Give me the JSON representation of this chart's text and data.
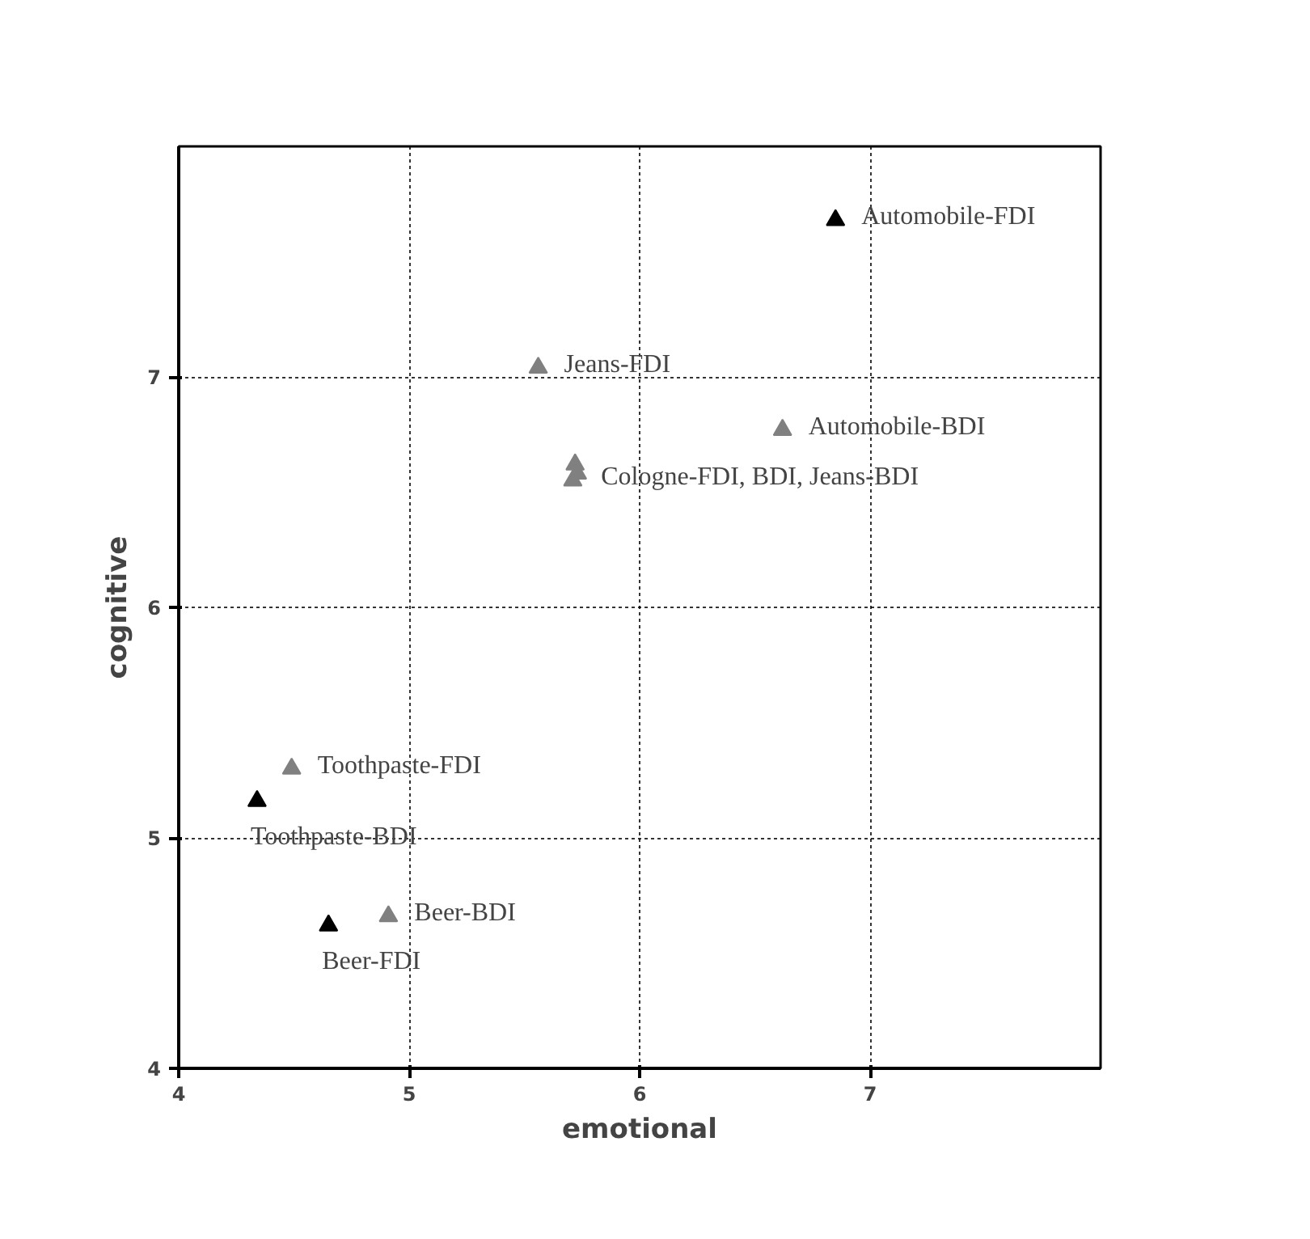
{
  "chart_data": {
    "type": "scatter",
    "xlabel": "emotional",
    "ylabel": "cognitive",
    "xlim": [
      4,
      8
    ],
    "ylim": [
      4,
      8
    ],
    "xticks": [
      4,
      5,
      6,
      7
    ],
    "yticks": [
      4,
      5,
      6,
      7
    ],
    "grid": true,
    "marker": "triangle",
    "series": [
      {
        "color": "#000000",
        "x": [
          6.85,
          4.34,
          4.65
        ],
        "values": [
          7.68,
          5.16,
          4.62
        ]
      },
      {
        "color": "#808080",
        "x": [
          5.56,
          6.62,
          5.72,
          5.73,
          5.71,
          4.49,
          4.91
        ],
        "values": [
          7.04,
          6.77,
          6.62,
          6.58,
          6.55,
          5.3,
          4.66
        ]
      }
    ],
    "annotations": [
      {
        "text": "Automobile-FDI",
        "x": 6.85,
        "y": 7.68
      },
      {
        "text": "Jeans-FDI",
        "x": 5.56,
        "y": 7.04
      },
      {
        "text": "Automobile-BDI",
        "x": 6.62,
        "y": 6.77
      },
      {
        "text": "Cologne-FDI, BDI, Jeans-BDI",
        "x": 5.72,
        "y": 6.55
      },
      {
        "text": "Toothpaste-FDI",
        "x": 4.49,
        "y": 5.3
      },
      {
        "text": "Toothpaste-BDI",
        "x": 4.34,
        "y": 5.16
      },
      {
        "text": "Beer-BDI",
        "x": 4.91,
        "y": 4.66
      },
      {
        "text": "Beer-FDI",
        "x": 4.65,
        "y": 4.62
      }
    ]
  }
}
